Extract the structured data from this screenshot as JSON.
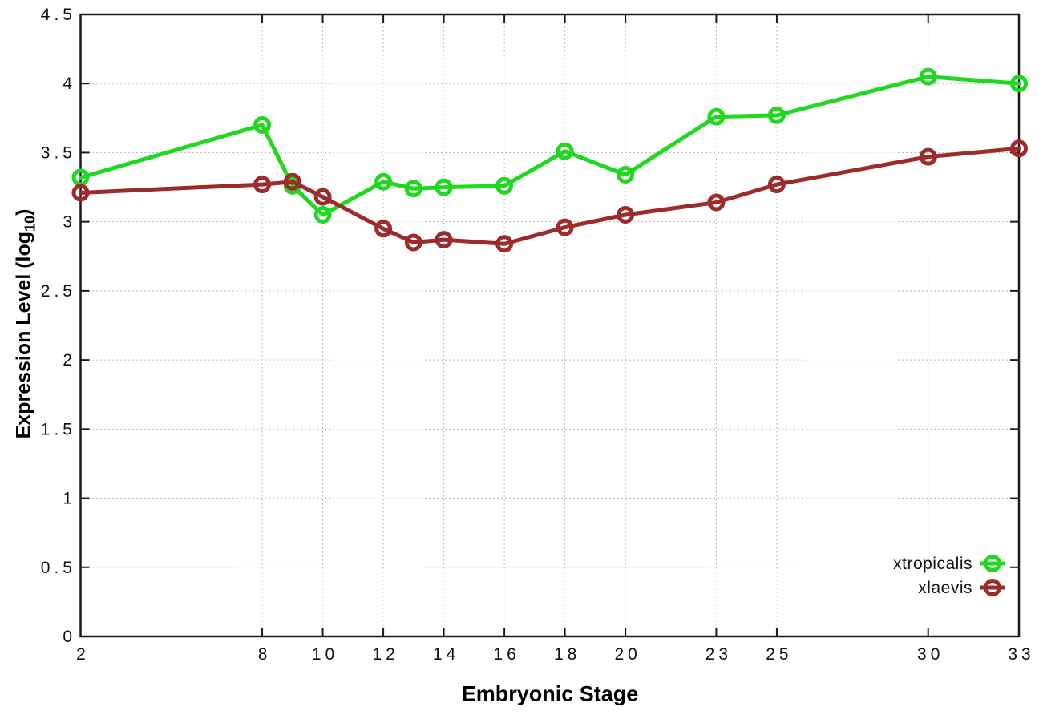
{
  "colors": {
    "background": "#ffffff",
    "axis": "#1a1a1a",
    "grid": "#a8a8a8",
    "xtropicalis": "#1fd81f",
    "xlaevis": "#9e2b2b",
    "text": "#111111"
  },
  "axes": {
    "x": {
      "label": "Embryonic Stage"
    },
    "y": {
      "label_prefix": "Expression Level (log",
      "label_sub": "10",
      "label_suffix": ")"
    }
  },
  "chart_data": {
    "type": "line",
    "title": "",
    "xlabel": "Embryonic Stage",
    "ylabel": "Expression Level (log10)",
    "x": [
      2,
      8,
      9,
      10,
      12,
      13,
      14,
      16,
      18,
      20,
      23,
      25,
      30,
      33
    ],
    "series": [
      {
        "name": "xtropicalis",
        "color": "#1fd81f",
        "marker": "open-circle",
        "values": [
          3.32,
          3.7,
          3.26,
          3.05,
          3.29,
          3.24,
          3.25,
          3.26,
          3.51,
          3.34,
          3.76,
          3.77,
          4.05,
          4.0
        ]
      },
      {
        "name": "xlaevis",
        "color": "#9e2b2b",
        "marker": "open-circle",
        "values": [
          3.21,
          3.27,
          3.29,
          3.18,
          2.95,
          2.85,
          2.87,
          2.84,
          2.96,
          3.05,
          3.14,
          3.27,
          3.47,
          3.53
        ]
      }
    ],
    "xlim": [
      2,
      33
    ],
    "ylim": [
      0,
      4.5
    ],
    "xticks": [
      2,
      8,
      10,
      12,
      14,
      16,
      18,
      20,
      23,
      25,
      30,
      33
    ],
    "yticks": [
      0,
      0.5,
      1,
      1.5,
      2,
      2.5,
      3,
      3.5,
      4,
      4.5
    ],
    "grid": true,
    "grid_style": "dotted",
    "legend_position": "bottom-right",
    "border": "box-with-mirrored-ticks"
  }
}
